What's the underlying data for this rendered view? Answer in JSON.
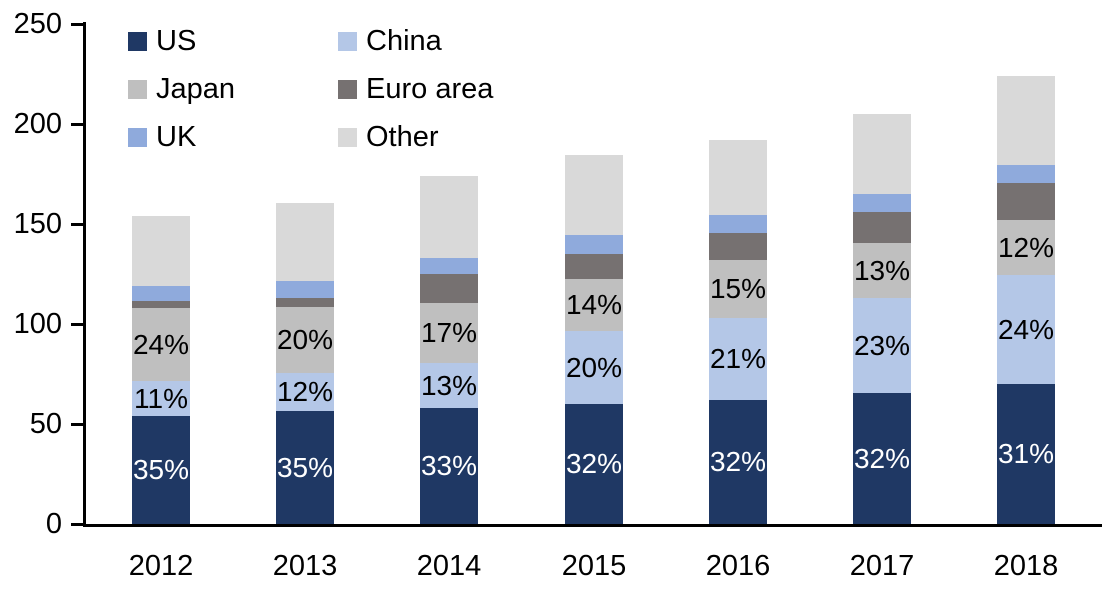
{
  "chart_data": {
    "type": "bar",
    "subtype": "stacked-column",
    "title": "",
    "xlabel": "",
    "ylabel": "",
    "categories": [
      "2012",
      "2013",
      "2014",
      "2015",
      "2016",
      "2017",
      "2018"
    ],
    "series": [
      {
        "name": "US",
        "color": "#1F3864",
        "values": [
          54,
          56.5,
          58,
          60,
          62,
          65.5,
          70
        ],
        "labels": [
          "35%",
          "35%",
          "33%",
          "32%",
          "32%",
          "32%",
          "31%"
        ],
        "label_color": "#FFFFFF"
      },
      {
        "name": "China",
        "color": "#B4C7E7",
        "values": [
          17.5,
          19,
          22.5,
          36.5,
          41,
          47.5,
          54.5
        ],
        "labels": [
          "11%",
          "12%",
          "13%",
          "20%",
          "21%",
          "23%",
          "24%"
        ],
        "label_color": "#000000"
      },
      {
        "name": "Japan",
        "color": "#BFBFBF",
        "values": [
          36.5,
          33,
          30,
          26,
          29,
          27.5,
          27.5
        ],
        "labels": [
          "24%",
          "20%",
          "17%",
          "14%",
          "15%",
          "13%",
          "12%"
        ],
        "label_color": "#000000"
      },
      {
        "name": "Euro area",
        "color": "#767171",
        "values": [
          3.5,
          4.5,
          14.5,
          12.5,
          13.5,
          15.5,
          18.5
        ],
        "labels": null,
        "label_color": null
      },
      {
        "name": "UK",
        "color": "#8FAADC",
        "values": [
          7.5,
          8.5,
          8,
          9.5,
          9,
          9,
          9
        ],
        "labels": null,
        "label_color": null
      },
      {
        "name": "Other",
        "color": "#D9D9D9",
        "values": [
          35,
          39,
          41,
          40,
          37.5,
          40,
          44.5
        ],
        "labels": null,
        "label_color": null
      }
    ],
    "totals": [
      154,
      160.5,
      174,
      184.5,
      192,
      205,
      224
    ],
    "y_axis": {
      "min": 0,
      "max": 250,
      "step": 50,
      "tick_labels": [
        "0",
        "50",
        "100",
        "150",
        "200",
        "250"
      ]
    },
    "legend": {
      "position": "top-left",
      "columns": 2,
      "row_order": [
        [
          "US",
          "China"
        ],
        [
          "Japan",
          "Euro area"
        ],
        [
          "UK",
          "Other"
        ]
      ]
    },
    "grid": false,
    "background_color": "#FFFFFF",
    "axis_color": "#000000"
  }
}
